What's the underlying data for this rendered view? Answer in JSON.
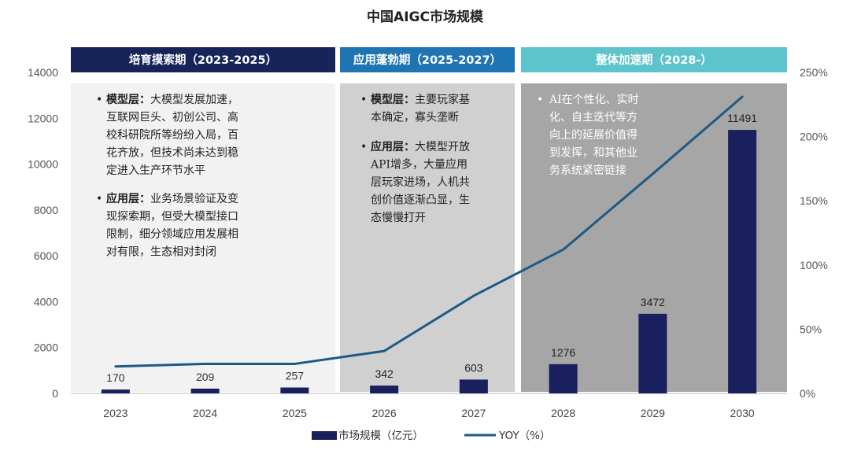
{
  "chart_data": {
    "type": "bar",
    "title": "中国AIGC市场规模",
    "categories": [
      "2023",
      "2024",
      "2025",
      "2026",
      "2027",
      "2028",
      "2029",
      "2030"
    ],
    "series": [
      {
        "name": "市场规模（亿元）",
        "type": "bar",
        "axis": "left",
        "values": [
          170,
          209,
          257,
          342,
          603,
          1276,
          3472,
          11491
        ],
        "color": "#1a1f5e"
      },
      {
        "name": "YOY（%）",
        "type": "line",
        "axis": "right",
        "values": [
          21,
          23,
          23,
          33,
          76,
          112,
          171,
          231
        ],
        "color": "#1d5a86"
      }
    ],
    "left_axis": {
      "ylim": [
        0,
        14000
      ],
      "ticks": [
        "0",
        "2000",
        "4000",
        "6000",
        "8000",
        "10000",
        "12000",
        "14000"
      ]
    },
    "right_axis": {
      "ylim": [
        0,
        250
      ],
      "ticks": [
        "0%",
        "50%",
        "100%",
        "150%",
        "200%",
        "250%"
      ]
    },
    "legend_position": "bottom-center",
    "grid": false,
    "phases": [
      {
        "title": "培育摸索期（2023-2025）",
        "header_color": "#16245a",
        "panel_color": "#f2f2f2",
        "text_color": "#222222",
        "notes": [
          {
            "bold": "模型层：",
            "lines": [
              "模型层：大模型发展加速，",
              "互联网巨头、初创公司、高",
              "校科研院所等纷纷入局，百",
              "花齐放，但技术尚未达到稳",
              "定进入生产环节水平"
            ]
          },
          {
            "bold": "应用层：",
            "lines": [
              "应用层：业务场景验证及变",
              "现探索期，但受大模型接口",
              "限制，细分领域应用发展相",
              "对有限，生态相对封闭"
            ]
          }
        ]
      },
      {
        "title": "应用蓬勃期（2025-2027）",
        "header_color": "#1f74b3",
        "panel_color": "#d0d0d0",
        "text_color": "#222222",
        "notes": [
          {
            "bold": "模型层：",
            "lines": [
              "模型层：主要玩家基",
              "本确定，寡头垄断"
            ]
          },
          {
            "bold": "应用层：",
            "lines": [
              "应用层：大模型开放",
              "API增多，大量应用",
              "层玩家进场，人机共",
              "创价值逐渐凸显，生",
              "态慢慢打开"
            ]
          }
        ]
      },
      {
        "title": "整体加速期（2028-）",
        "header_color": "#5ec4cc",
        "panel_color": "#a6a6a6",
        "text_color": "#ffffff",
        "notes": [
          {
            "bold": "",
            "lines": [
              "AI在个性化、实时",
              "化、自主迭代等方",
              "向上的延展价值得",
              "到发挥，和其他业",
              "务系统紧密链接"
            ]
          }
        ]
      }
    ]
  }
}
